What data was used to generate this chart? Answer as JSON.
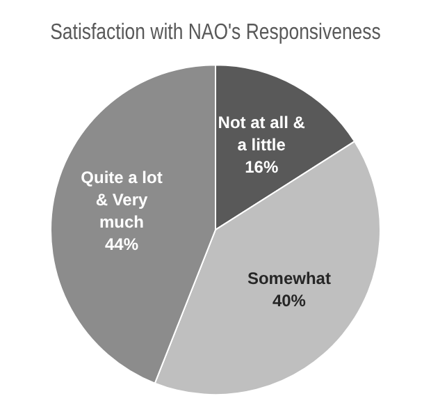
{
  "chart_data": {
    "type": "pie",
    "title": "Satisfaction with NAO's Responsiveness",
    "categories": [
      "Not at all & a little",
      "Somewhat",
      "Quite a lot & Very much"
    ],
    "values": [
      16,
      40,
      44
    ],
    "colors": [
      "#595959",
      "#bfbfbf",
      "#8c8c8c"
    ],
    "value_labels": [
      "16%",
      "40%",
      "44%"
    ],
    "legend": false
  }
}
